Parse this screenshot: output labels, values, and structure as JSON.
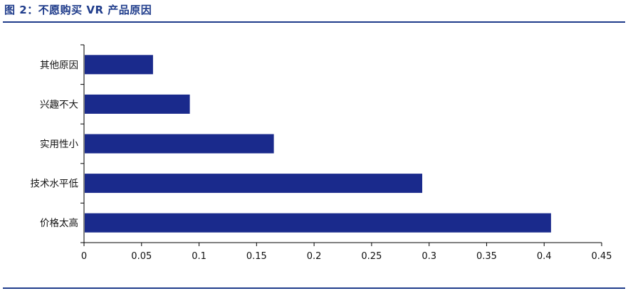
{
  "figure": {
    "title": "图 2：不愿购买 VR 产品原因"
  },
  "colors": {
    "bar": "#1a2a8c",
    "rule": "#1f3c8b",
    "axis": "#000000"
  },
  "chart_data": {
    "type": "bar",
    "orientation": "horizontal",
    "categories": [
      "其他原因",
      "兴趣不大",
      "实用性小",
      "技术水平低",
      "价格太高"
    ],
    "values": [
      0.06,
      0.092,
      0.165,
      0.294,
      0.406
    ],
    "xlim": [
      0,
      0.45
    ],
    "xticks": [
      0,
      0.05,
      0.1,
      0.15,
      0.2,
      0.25,
      0.3,
      0.35,
      0.4,
      0.45
    ],
    "xtick_labels": [
      "0",
      "0.05",
      "0.1",
      "0.15",
      "0.2",
      "0.25",
      "0.3",
      "0.35",
      "0.4",
      "0.45"
    ],
    "grid": false,
    "legend": "none"
  }
}
